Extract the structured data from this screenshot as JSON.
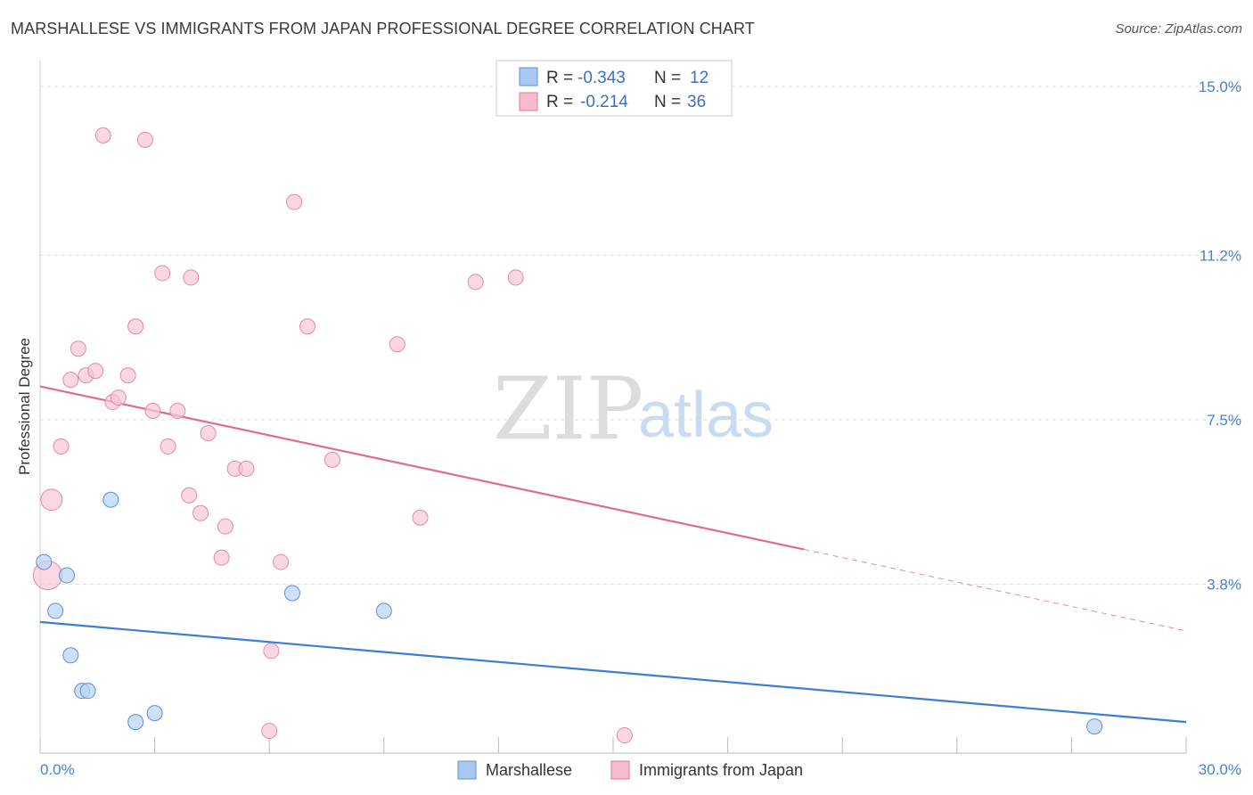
{
  "header": {
    "title": "MARSHALLESE VS IMMIGRANTS FROM JAPAN PROFESSIONAL DEGREE CORRELATION CHART",
    "source": "Source: ZipAtlas.com"
  },
  "watermark": {
    "zip": "ZIP",
    "atlas": "atlas"
  },
  "legend": {
    "rows": [
      {
        "r_label": "R =",
        "r_value": "-0.343",
        "n_label": "N =",
        "n_value": "12",
        "color": "#a9c8ef",
        "stroke": "#5b8fd6"
      },
      {
        "r_label": "R =",
        "r_value": "-0.214",
        "n_label": "N =",
        "n_value": "36",
        "color": "#f6bccd",
        "stroke": "#e07898"
      }
    ]
  },
  "bottom_legend": {
    "items": [
      {
        "label": "Marshallese",
        "color": "#a9c8ef",
        "stroke": "#5b8fd6"
      },
      {
        "label": "Immigrants from Japan",
        "color": "#f6bccd",
        "stroke": "#e07898"
      }
    ]
  },
  "colors": {
    "blue_line": "#3b7dd8",
    "pink_line": "#e06a92",
    "blue_fill": "#b8d3f3",
    "blue_stroke": "#5b8fd6",
    "pink_fill": "#f8c6d5",
    "pink_stroke": "#e38aa6",
    "grid": "#dddddd",
    "tick_text": "#4a7fd0"
  },
  "chart_data": {
    "type": "scatter",
    "title": "MARSHALLESE VS IMMIGRANTS FROM JAPAN PROFESSIONAL DEGREE CORRELATION CHART",
    "xlabel": "",
    "ylabel": "Professional Degree",
    "xlim": [
      0,
      30
    ],
    "ylim": [
      0,
      15
    ],
    "x_tick_labels": [
      "0.0%",
      "30.0%"
    ],
    "y_ticks": [
      3.8,
      7.5,
      11.2,
      15.0
    ],
    "y_tick_labels": [
      "3.8%",
      "7.5%",
      "11.2%",
      "15.0%"
    ],
    "series": [
      {
        "name": "Marshallese",
        "r": -0.343,
        "n": 12,
        "points": [
          [
            0.1,
            4.3
          ],
          [
            0.4,
            3.2
          ],
          [
            0.7,
            4.0
          ],
          [
            0.8,
            2.2
          ],
          [
            1.1,
            1.4
          ],
          [
            1.25,
            1.4
          ],
          [
            1.85,
            5.7
          ],
          [
            2.5,
            0.7
          ],
          [
            3.0,
            0.9
          ],
          [
            6.6,
            3.6
          ],
          [
            9.0,
            3.2
          ],
          [
            27.6,
            0.6
          ]
        ],
        "sizes": [
          1,
          1,
          1,
          1,
          1,
          1,
          1,
          1,
          1,
          1,
          1,
          1
        ],
        "trend": {
          "x": [
            0,
            30
          ],
          "y": [
            2.95,
            0.7
          ],
          "dashed_from": null
        }
      },
      {
        "name": "Immigrants from Japan",
        "r": -0.214,
        "n": 36,
        "points": [
          [
            0.2,
            4.0
          ],
          [
            0.3,
            5.7
          ],
          [
            0.55,
            6.9
          ],
          [
            0.8,
            8.4
          ],
          [
            1.0,
            9.1
          ],
          [
            1.2,
            8.5
          ],
          [
            1.45,
            8.6
          ],
          [
            1.65,
            13.9
          ],
          [
            1.9,
            7.9
          ],
          [
            2.05,
            8.0
          ],
          [
            2.3,
            8.5
          ],
          [
            2.5,
            9.6
          ],
          [
            2.75,
            13.8
          ],
          [
            2.95,
            7.7
          ],
          [
            3.2,
            10.8
          ],
          [
            3.35,
            6.9
          ],
          [
            3.6,
            7.7
          ],
          [
            3.9,
            5.8
          ],
          [
            3.95,
            10.7
          ],
          [
            4.2,
            5.4
          ],
          [
            4.4,
            7.2
          ],
          [
            4.75,
            4.4
          ],
          [
            4.85,
            5.1
          ],
          [
            5.1,
            6.4
          ],
          [
            5.4,
            6.4
          ],
          [
            6.05,
            2.3
          ],
          [
            6.0,
            0.5
          ],
          [
            6.3,
            4.3
          ],
          [
            6.65,
            12.4
          ],
          [
            7.0,
            9.6
          ],
          [
            7.65,
            6.6
          ],
          [
            9.35,
            9.2
          ],
          [
            9.95,
            5.3
          ],
          [
            11.4,
            10.6
          ],
          [
            12.45,
            10.7
          ],
          [
            15.3,
            0.4
          ]
        ],
        "sizes": [
          1.9,
          1.4,
          1,
          1,
          1,
          1,
          1,
          1,
          1,
          1,
          1,
          1,
          1,
          1,
          1,
          1,
          1,
          1,
          1,
          1,
          1,
          1,
          1,
          1,
          1,
          1,
          1,
          1,
          1,
          1,
          1,
          1,
          1,
          1,
          1,
          1
        ],
        "trend": {
          "x": [
            0,
            30
          ],
          "y": [
            8.25,
            2.75
          ],
          "dashed_from": 20
        }
      }
    ],
    "grid": true,
    "legend_position": "top-center"
  }
}
